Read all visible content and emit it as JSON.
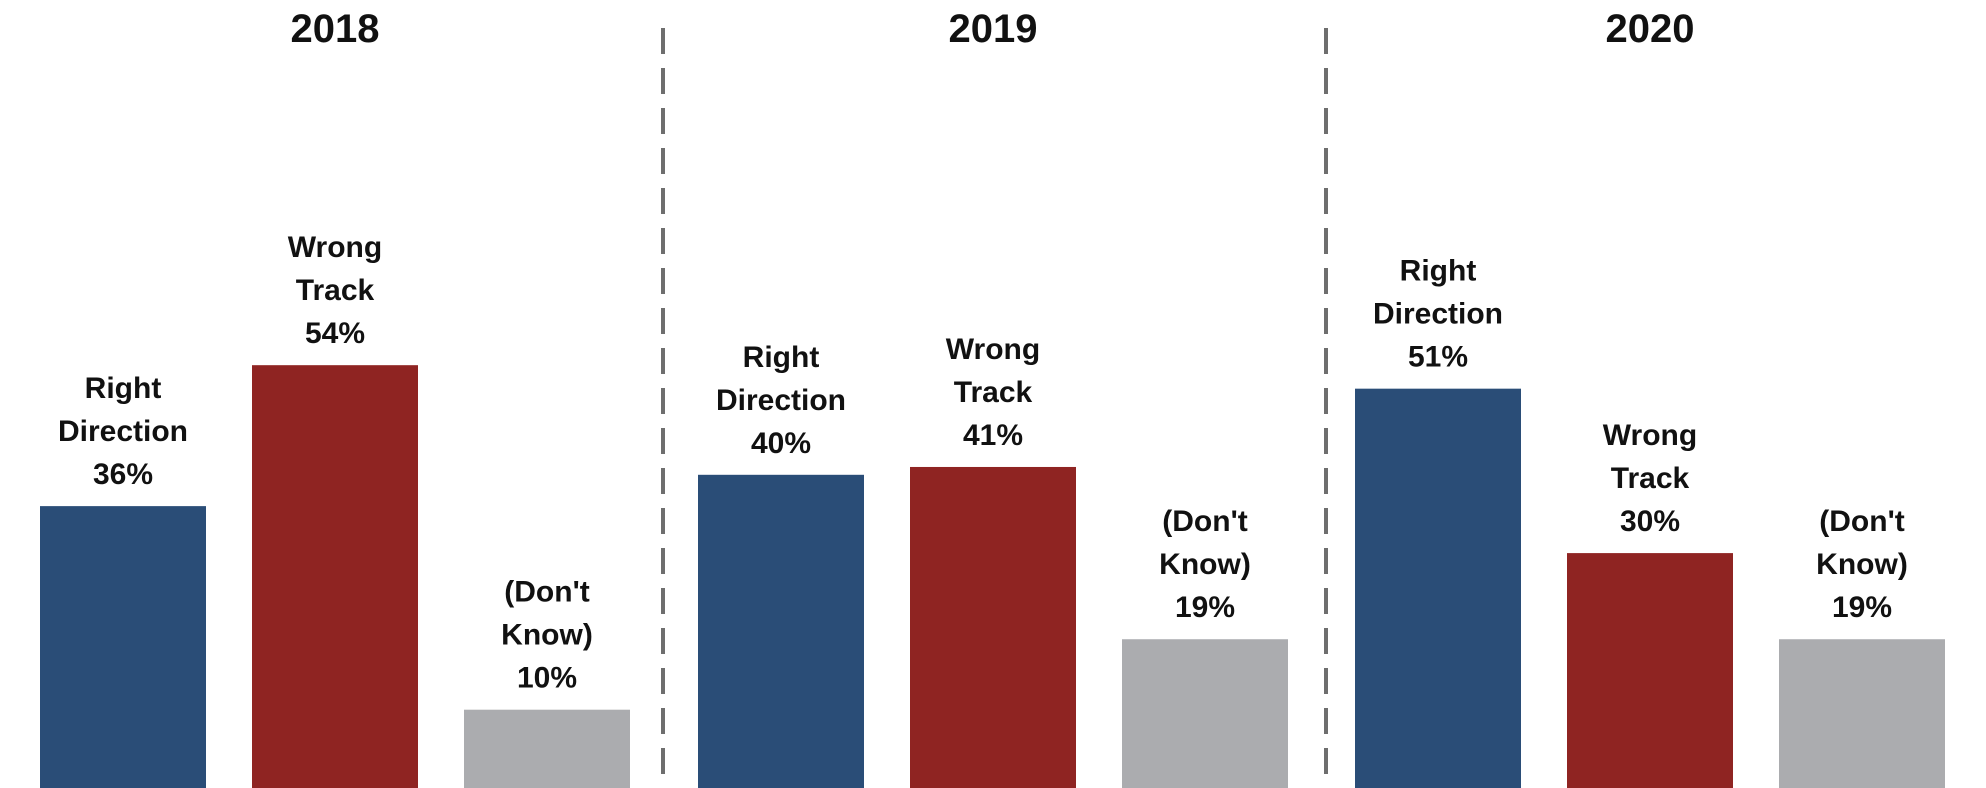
{
  "chart_data": {
    "type": "bar",
    "ylim": [
      0,
      60
    ],
    "panels": [
      {
        "title": "2018",
        "bars": [
          {
            "label_lines": [
              "Right",
              "Direction",
              "36%"
            ],
            "value": 36,
            "color": "#2a4d77"
          },
          {
            "label_lines": [
              "Wrong",
              "Track",
              "54%"
            ],
            "value": 54,
            "color": "#8f2422"
          },
          {
            "label_lines": [
              "(Don't",
              "Know)",
              "10%"
            ],
            "value": 10,
            "color": "#abacaf"
          }
        ]
      },
      {
        "title": "2019",
        "bars": [
          {
            "label_lines": [
              "Right",
              "Direction",
              "40%"
            ],
            "value": 40,
            "color": "#2a4d77"
          },
          {
            "label_lines": [
              "Wrong",
              "Track",
              "41%"
            ],
            "value": 41,
            "color": "#8f2422"
          },
          {
            "label_lines": [
              "(Don't",
              "Know)",
              "19%"
            ],
            "value": 19,
            "color": "#abacaf"
          }
        ]
      },
      {
        "title": "2020",
        "bars": [
          {
            "label_lines": [
              "Right",
              "Direction",
              "51%"
            ],
            "value": 51,
            "color": "#2a4d77"
          },
          {
            "label_lines": [
              "Wrong",
              "Track",
              "30%"
            ],
            "value": 30,
            "color": "#8f2422"
          },
          {
            "label_lines": [
              "(Don't",
              "Know)",
              "19%"
            ],
            "value": 19,
            "color": "#abacaf"
          }
        ]
      }
    ],
    "divider_color": "#6e6e6e"
  }
}
